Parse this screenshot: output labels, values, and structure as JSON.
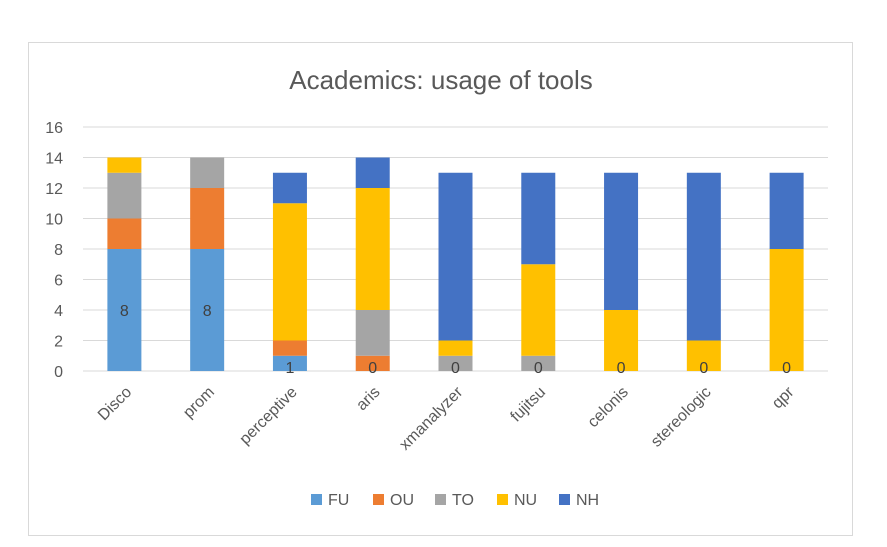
{
  "chart_data": {
    "type": "bar",
    "stacked": true,
    "title": "Academics: usage of tools",
    "xlabel": "",
    "ylabel": "",
    "ylim": [
      0,
      16
    ],
    "yticks": [
      0,
      2,
      4,
      6,
      8,
      10,
      12,
      14,
      16
    ],
    "grid": true,
    "legend": "bottom",
    "categories": [
      "Disco",
      "prom",
      "perceptive",
      "aris",
      "xmanalyzer",
      "fujitsu",
      "celonis",
      "stereologic",
      "qpr"
    ],
    "series": [
      {
        "name": "FU",
        "color": "#5B9BD5",
        "values": [
          8,
          8,
          1,
          0,
          0,
          0,
          0,
          0,
          0
        ]
      },
      {
        "name": "OU",
        "color": "#ED7D31",
        "values": [
          2,
          4,
          1,
          1,
          0,
          0,
          0,
          0,
          0
        ]
      },
      {
        "name": "TO",
        "color": "#A5A5A5",
        "values": [
          3,
          2,
          0,
          3,
          1,
          1,
          0,
          0,
          0
        ]
      },
      {
        "name": "NU",
        "color": "#FFC000",
        "values": [
          1,
          0,
          9,
          8,
          1,
          6,
          4,
          2,
          8
        ]
      },
      {
        "name": "NH",
        "color": "#4472C4",
        "values": [
          0,
          0,
          2,
          2,
          11,
          6,
          9,
          11,
          5
        ]
      }
    ],
    "data_labels": {
      "series": "FU",
      "values": [
        "8",
        "8",
        "1",
        "0",
        "0",
        "0",
        "0",
        "0",
        "0"
      ]
    }
  }
}
